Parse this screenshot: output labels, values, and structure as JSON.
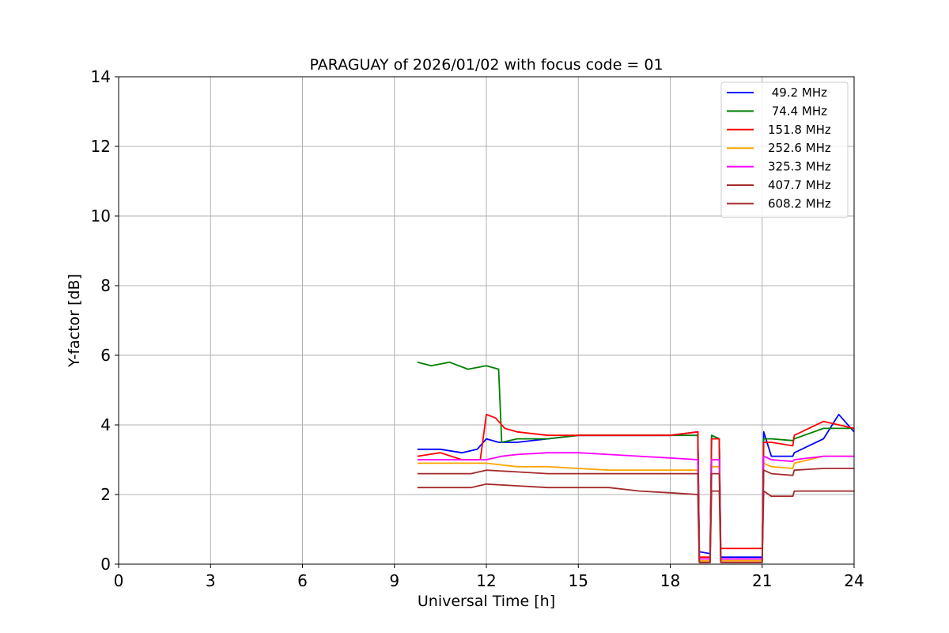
{
  "chart_data": {
    "type": "line",
    "title": "PARAGUAY of 2026/01/02 with focus code = 01",
    "xlabel": "Universal Time [h]",
    "ylabel": "Y-factor [dB]",
    "xlim": [
      0,
      24
    ],
    "ylim": [
      0,
      14
    ],
    "xticks": [
      0,
      3,
      6,
      9,
      12,
      15,
      18,
      21,
      24
    ],
    "yticks": [
      0,
      2,
      4,
      6,
      8,
      10,
      12,
      14
    ],
    "grid": true,
    "legend_position": "top-right",
    "series": [
      {
        "name": "49.2 MHz",
        "legend_label": " 49.2 MHz",
        "color": "#0000ff",
        "x": [
          9.75,
          10.5,
          11.2,
          11.7,
          12.0,
          12.4,
          13.0,
          14.0,
          15.0,
          16.0,
          17.0,
          18.0,
          18.9,
          18.95,
          19.0,
          19.3,
          19.35,
          19.6,
          19.65,
          21.0,
          21.05,
          21.3,
          22.0,
          22.05,
          23.0,
          23.5,
          24.0
        ],
        "y": [
          3.3,
          3.3,
          3.2,
          3.3,
          3.6,
          3.5,
          3.5,
          3.6,
          3.7,
          3.7,
          3.7,
          3.7,
          3.8,
          0.35,
          0.35,
          0.3,
          3.7,
          3.6,
          0.2,
          0.2,
          3.8,
          3.1,
          3.1,
          3.2,
          3.6,
          4.3,
          3.8
        ]
      },
      {
        "name": "74.4 MHz",
        "legend_label": " 74.4 MHz",
        "color": "#008000",
        "x": [
          9.75,
          10.2,
          10.8,
          11.4,
          12.0,
          12.4,
          12.5,
          13.0,
          14.0,
          15.0,
          16.0,
          17.0,
          18.0,
          18.9,
          18.95,
          19.0,
          19.3,
          19.35,
          19.6,
          19.65,
          21.0,
          21.05,
          21.3,
          22.0,
          22.05,
          23.0,
          24.0
        ],
        "y": [
          5.8,
          5.7,
          5.8,
          5.6,
          5.7,
          5.6,
          3.5,
          3.6,
          3.6,
          3.7,
          3.7,
          3.7,
          3.7,
          3.7,
          0.05,
          0.05,
          0.05,
          3.7,
          3.6,
          0.1,
          0.1,
          3.6,
          3.6,
          3.55,
          3.6,
          3.9,
          3.9
        ]
      },
      {
        "name": "151.8 MHz",
        "legend_label": "151.8 MHz",
        "color": "#ff0000",
        "x": [
          9.75,
          10.5,
          11.2,
          11.8,
          12.0,
          12.3,
          12.6,
          13.0,
          14.0,
          15.0,
          16.0,
          17.0,
          18.0,
          18.9,
          18.95,
          19.0,
          19.3,
          19.35,
          19.6,
          19.65,
          21.0,
          21.05,
          21.3,
          22.0,
          22.05,
          23.0,
          23.5,
          24.0
        ],
        "y": [
          3.1,
          3.2,
          3.0,
          3.0,
          4.3,
          4.2,
          3.9,
          3.8,
          3.7,
          3.7,
          3.7,
          3.7,
          3.7,
          3.8,
          0.2,
          0.2,
          0.2,
          3.6,
          3.6,
          0.45,
          0.45,
          3.5,
          3.5,
          3.4,
          3.7,
          4.1,
          4.0,
          3.9
        ]
      },
      {
        "name": "252.6 MHz",
        "legend_label": "252.6 MHz",
        "color": "#ffa500",
        "x": [
          9.75,
          10.5,
          11.5,
          12.0,
          13.0,
          14.0,
          15.0,
          16.0,
          17.0,
          18.0,
          18.9,
          18.95,
          19.0,
          19.3,
          19.35,
          19.6,
          19.65,
          21.0,
          21.05,
          21.3,
          22.0,
          22.05,
          23.0,
          24.0
        ],
        "y": [
          2.9,
          2.9,
          2.9,
          2.9,
          2.8,
          2.8,
          2.75,
          2.7,
          2.7,
          2.7,
          2.7,
          0.1,
          0.1,
          0.1,
          2.8,
          2.8,
          0.1,
          0.1,
          2.9,
          2.8,
          2.75,
          2.9,
          3.1,
          3.1
        ]
      },
      {
        "name": "325.3 MHz",
        "legend_label": "325.3 MHz",
        "color": "#ff00ff",
        "x": [
          9.75,
          10.5,
          11.5,
          12.0,
          12.5,
          13.0,
          14.0,
          15.0,
          16.0,
          17.0,
          18.0,
          18.9,
          18.95,
          19.0,
          19.3,
          19.35,
          19.6,
          19.65,
          21.0,
          21.05,
          21.3,
          22.0,
          22.05,
          23.0,
          24.0
        ],
        "y": [
          3.0,
          3.0,
          3.0,
          3.0,
          3.1,
          3.15,
          3.2,
          3.2,
          3.15,
          3.1,
          3.05,
          3.0,
          0.15,
          0.15,
          0.15,
          3.0,
          3.0,
          0.15,
          0.15,
          3.1,
          3.0,
          2.95,
          3.0,
          3.1,
          3.1
        ]
      },
      {
        "name": "407.7 MHz",
        "legend_label": "407.7 MHz",
        "color": "#a52a2a",
        "x": [
          9.75,
          10.5,
          11.5,
          12.0,
          13.0,
          14.0,
          15.0,
          16.0,
          17.0,
          18.0,
          18.9,
          18.95,
          19.0,
          19.3,
          19.35,
          19.6,
          19.65,
          21.0,
          21.05,
          21.3,
          22.0,
          22.05,
          23.0,
          24.0
        ],
        "y": [
          2.6,
          2.6,
          2.6,
          2.7,
          2.65,
          2.6,
          2.6,
          2.6,
          2.6,
          2.6,
          2.6,
          0.05,
          0.05,
          0.05,
          2.6,
          2.6,
          0.05,
          0.05,
          2.7,
          2.6,
          2.55,
          2.7,
          2.75,
          2.75
        ]
      },
      {
        "name": "608.2 MHz",
        "legend_label": "608.2 MHz",
        "color": "#a52a2a",
        "x": [
          9.75,
          10.5,
          11.5,
          12.0,
          13.0,
          14.0,
          15.0,
          16.0,
          17.0,
          18.0,
          18.9,
          18.95,
          19.0,
          19.3,
          19.35,
          19.6,
          19.65,
          21.0,
          21.05,
          21.3,
          22.0,
          22.05,
          23.0,
          24.0
        ],
        "y": [
          2.2,
          2.2,
          2.2,
          2.3,
          2.25,
          2.2,
          2.2,
          2.2,
          2.1,
          2.05,
          2.0,
          0.05,
          0.05,
          0.05,
          2.1,
          2.1,
          0.05,
          0.05,
          2.1,
          1.95,
          1.95,
          2.1,
          2.1,
          2.1
        ]
      }
    ]
  }
}
